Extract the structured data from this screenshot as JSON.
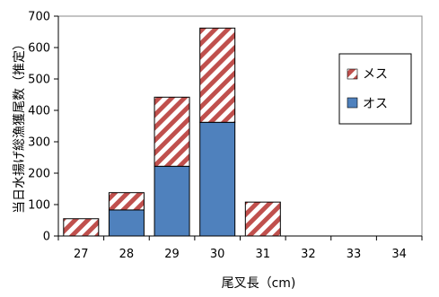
{
  "chart_data": {
    "type": "bar",
    "stacked": true,
    "categories": [
      "27",
      "28",
      "29",
      "30",
      "31",
      "32",
      "33",
      "34"
    ],
    "series": [
      {
        "name": "オス",
        "values": [
          0,
          83,
          222,
          362,
          0,
          0,
          0,
          0
        ],
        "color": "#4F81BD",
        "pattern": "solid"
      },
      {
        "name": "メス",
        "values": [
          55,
          55,
          220,
          300,
          108,
          0,
          0,
          0
        ],
        "color": "#C0504D",
        "pattern": "diagonal-stripes"
      }
    ],
    "ylabel": "当日水揚げ総漁獲尾数（推定）",
    "xlabel": "尾叉長（cm)",
    "ylim": [
      0,
      700
    ],
    "yticks": [
      0,
      100,
      200,
      300,
      400,
      500,
      600,
      700
    ],
    "grid": false,
    "legend_position": "right"
  }
}
